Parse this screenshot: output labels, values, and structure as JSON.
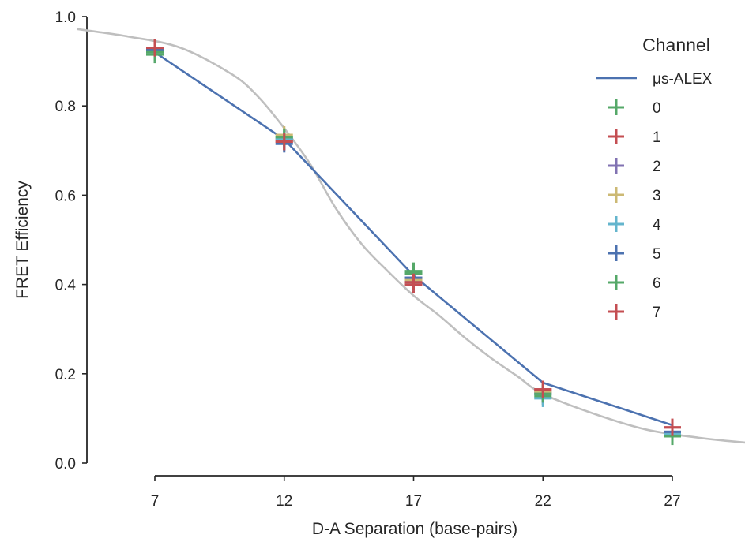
{
  "chart_data": {
    "type": "line",
    "xlabel": "D-A Separation (base-pairs)",
    "ylabel": "FRET Efficiency",
    "xlim": [
      2,
      31.5
    ],
    "ylim": [
      0.0,
      1.0
    ],
    "xticks": [
      7,
      12,
      17,
      22,
      27
    ],
    "xtick_labels": [
      "7",
      "12",
      "17",
      "22",
      "27"
    ],
    "yticks": [
      0.0,
      0.2,
      0.4,
      0.6,
      0.8,
      1.0
    ],
    "ytick_labels": [
      "0.0",
      "0.2",
      "0.4",
      "0.6",
      "0.8",
      "1.0"
    ],
    "grid": false,
    "legend": {
      "title": "Channel",
      "placement": "top-right"
    },
    "line_series": {
      "name": "μs-ALEX",
      "color": "#4C72B0",
      "x": [
        7,
        12,
        17,
        22,
        27
      ],
      "y": [
        0.92,
        0.725,
        0.42,
        0.18,
        0.085
      ]
    },
    "fit_curve": {
      "color": "#BFBFBF",
      "x": [
        4.0,
        6.0,
        8.0,
        10.0,
        11.0,
        12.0,
        13.0,
        14.0,
        15.0,
        16.0,
        17.0,
        18.0,
        19.0,
        20.0,
        21.0,
        22.0,
        24.0,
        26.0,
        28.0,
        30.0,
        31.5
      ],
      "y": [
        0.972,
        0.955,
        0.93,
        0.87,
        0.82,
        0.75,
        0.67,
        0.57,
        0.49,
        0.43,
        0.375,
        0.33,
        0.28,
        0.235,
        0.195,
        0.155,
        0.11,
        0.075,
        0.057,
        0.045,
        0.038
      ]
    },
    "scatter_series": [
      {
        "name": "0",
        "color": "#55A868",
        "x": [
          7,
          12,
          17,
          22,
          27
        ],
        "y": [
          0.915,
          0.73,
          0.43,
          0.15,
          0.06
        ]
      },
      {
        "name": "1",
        "color": "#C44E52",
        "x": [
          7,
          12,
          17,
          22,
          27
        ],
        "y": [
          0.93,
          0.72,
          0.4,
          0.165,
          0.08
        ]
      },
      {
        "name": "2",
        "color": "#8172B2",
        "x": [
          7,
          12,
          17,
          22,
          27
        ],
        "y": [
          0.925,
          0.725,
          0.415,
          0.16,
          0.07
        ]
      },
      {
        "name": "3",
        "color": "#CCB974",
        "x": [
          7,
          12,
          17,
          22,
          27
        ],
        "y": [
          0.92,
          0.735,
          0.41,
          0.16,
          0.065
        ]
      },
      {
        "name": "4",
        "color": "#64B5CD",
        "x": [
          7,
          12,
          17,
          22,
          27
        ],
        "y": [
          0.92,
          0.725,
          0.405,
          0.145,
          0.065
        ]
      },
      {
        "name": "5",
        "color": "#4C72B0",
        "x": [
          7,
          12,
          17,
          22,
          27
        ],
        "y": [
          0.925,
          0.715,
          0.415,
          0.155,
          0.07
        ]
      },
      {
        "name": "6",
        "color": "#55A868",
        "x": [
          7,
          12,
          17,
          22,
          27
        ],
        "y": [
          0.92,
          0.73,
          0.425,
          0.155,
          0.06
        ]
      },
      {
        "name": "7",
        "color": "#C44E52",
        "x": [
          7,
          12,
          17,
          22,
          27
        ],
        "y": [
          0.93,
          0.72,
          0.405,
          0.165,
          0.08
        ]
      }
    ]
  }
}
